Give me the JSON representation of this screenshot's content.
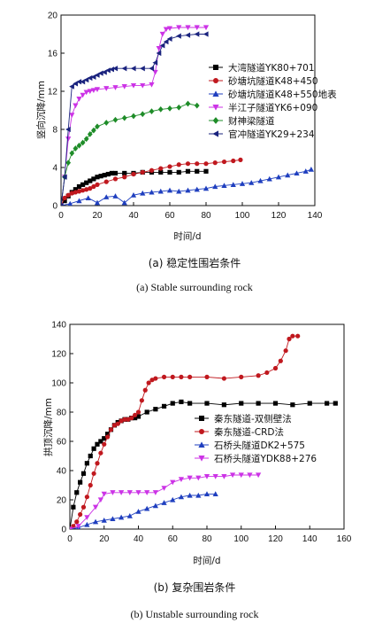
{
  "chart_data": [
    {
      "type": "line",
      "xlabel": "时间/d",
      "ylabel": "竖向沉降/mm",
      "xlim": [
        0,
        140
      ],
      "ylim": [
        0,
        20
      ],
      "xticks": [
        "0",
        "20",
        "40",
        "60",
        "80",
        "100",
        "120",
        "140"
      ],
      "yticks": [
        "0",
        "4",
        "8",
        "12",
        "16",
        "20"
      ],
      "caption": "(a) 稳定性围岩条件",
      "caption_en": "(a) Stable surrounding rock",
      "legend_position": "right",
      "series": [
        {
          "name": "大湾隧道YK80+701",
          "color": "#000000",
          "marker": "square",
          "x": [
            0,
            2,
            4,
            6,
            8,
            10,
            12,
            14,
            16,
            18,
            20,
            22,
            24,
            26,
            28,
            30,
            35,
            40,
            45,
            50,
            55,
            60,
            65,
            70,
            75,
            80
          ],
          "y": [
            0,
            0.5,
            1.0,
            1.4,
            1.7,
            2.0,
            2.2,
            2.4,
            2.6,
            2.8,
            3.0,
            3.1,
            3.2,
            3.3,
            3.4,
            3.4,
            3.4,
            3.4,
            3.5,
            3.5,
            3.5,
            3.5,
            3.5,
            3.6,
            3.6,
            3.6
          ]
        },
        {
          "name": "砂塘坑隧道K48+450",
          "color": "#c0181e",
          "marker": "circle",
          "x": [
            0,
            2,
            4,
            6,
            8,
            10,
            12,
            14,
            16,
            18,
            20,
            25,
            30,
            35,
            40,
            45,
            50,
            55,
            60,
            65,
            70,
            75,
            80,
            85,
            90,
            95,
            99
          ],
          "y": [
            0,
            0.8,
            1.1,
            1.3,
            1.4,
            1.5,
            1.6,
            1.7,
            1.8,
            2.0,
            2.2,
            2.5,
            2.8,
            3.0,
            3.3,
            3.5,
            3.7,
            3.9,
            4.1,
            4.3,
            4.4,
            4.4,
            4.4,
            4.5,
            4.6,
            4.7,
            4.8
          ]
        },
        {
          "name": "砂塘坑隧道K48+550地表",
          "color": "#1f3fbf",
          "marker": "triangle-up",
          "x": [
            0,
            5,
            10,
            15,
            20,
            25,
            30,
            35,
            40,
            45,
            50,
            55,
            60,
            65,
            70,
            75,
            80,
            85,
            90,
            95,
            100,
            105,
            110,
            115,
            120,
            125,
            130,
            135,
            138
          ],
          "y": [
            0,
            0.2,
            0.5,
            0.8,
            0.3,
            0.9,
            1.0,
            0.3,
            1.1,
            1.3,
            1.4,
            1.5,
            1.6,
            1.5,
            1.6,
            1.7,
            1.8,
            2.0,
            2.1,
            2.2,
            2.3,
            2.4,
            2.6,
            2.8,
            3.0,
            3.2,
            3.4,
            3.6,
            3.8
          ]
        },
        {
          "name": "半江子隧道YK6+090",
          "color": "#cc33e6",
          "marker": "triangle-down",
          "x": [
            0,
            2,
            4,
            6,
            8,
            10,
            12,
            14,
            16,
            18,
            20,
            25,
            30,
            35,
            40,
            45,
            50,
            52,
            54,
            56,
            58,
            60,
            65,
            70,
            75,
            80
          ],
          "y": [
            0,
            3,
            7,
            9.5,
            10.5,
            11.2,
            11.6,
            11.9,
            12.0,
            12.1,
            12.2,
            12.3,
            12.4,
            12.5,
            12.6,
            12.6,
            12.7,
            14.0,
            16.5,
            18.0,
            18.5,
            18.6,
            18.7,
            18.7,
            18.7,
            18.7
          ]
        },
        {
          "name": "财神梁隧道",
          "color": "#1e8c28",
          "marker": "diamond",
          "x": [
            0,
            2,
            4,
            6,
            8,
            10,
            12,
            14,
            16,
            18,
            20,
            25,
            30,
            35,
            40,
            45,
            50,
            55,
            60,
            65,
            70,
            75
          ],
          "y": [
            0,
            3,
            4.5,
            5.5,
            6.0,
            6.3,
            6.6,
            7.0,
            7.5,
            7.9,
            8.3,
            8.7,
            9.0,
            9.2,
            9.4,
            9.6,
            9.9,
            10.1,
            10.2,
            10.3,
            10.7,
            10.5
          ]
        },
        {
          "name": "官冲隧道YK29+234",
          "color": "#1a237e",
          "marker": "triangle-left",
          "x": [
            0,
            2,
            4,
            6,
            8,
            10,
            12,
            14,
            16,
            18,
            20,
            22,
            24,
            26,
            28,
            30,
            35,
            40,
            45,
            50,
            52,
            54,
            56,
            58,
            60,
            65,
            70,
            75,
            80
          ],
          "y": [
            0,
            3,
            8,
            12.5,
            12.8,
            13.0,
            13.0,
            13.2,
            13.4,
            13.5,
            13.7,
            13.9,
            14.0,
            14.2,
            14.3,
            14.4,
            14.4,
            14.4,
            14.4,
            14.4,
            15.0,
            16.0,
            16.8,
            17.2,
            17.5,
            17.8,
            17.9,
            18.0,
            18.0
          ]
        }
      ]
    },
    {
      "type": "line",
      "xlabel": "时间/d",
      "ylabel": "拱顶沉降/mm",
      "xlim": [
        0,
        160
      ],
      "ylim": [
        0,
        140
      ],
      "xticks": [
        "0",
        "20",
        "40",
        "60",
        "80",
        "100",
        "120",
        "140",
        "160"
      ],
      "yticks": [
        "0",
        "20",
        "40",
        "60",
        "80",
        "100",
        "120",
        "140"
      ],
      "caption": "(b) 复杂围岩条件",
      "caption_en": "(b) Unstable surrounding rock",
      "legend_position": "right",
      "series": [
        {
          "name": "秦东隧道-双侧壁法",
          "color": "#000000",
          "marker": "square",
          "x": [
            0,
            2,
            4,
            6,
            8,
            10,
            12,
            14,
            16,
            18,
            20,
            22,
            24,
            26,
            28,
            30,
            32,
            34,
            36,
            38,
            40,
            45,
            50,
            55,
            60,
            65,
            70,
            80,
            90,
            100,
            110,
            120,
            130,
            140,
            150,
            155
          ],
          "y": [
            0,
            15,
            25,
            32,
            38,
            45,
            50,
            55,
            58,
            60,
            62,
            65,
            68,
            71,
            73,
            74,
            75,
            75,
            76,
            76,
            77,
            80,
            82,
            84,
            86,
            87,
            86,
            86,
            85,
            86,
            86,
            86,
            85,
            86,
            86,
            86
          ]
        },
        {
          "name": "秦东隧道-CRD法",
          "color": "#c0181e",
          "marker": "circle",
          "x": [
            0,
            2,
            4,
            6,
            8,
            10,
            12,
            14,
            16,
            18,
            20,
            22,
            24,
            26,
            28,
            30,
            32,
            34,
            36,
            38,
            40,
            42,
            44,
            46,
            48,
            50,
            55,
            60,
            65,
            70,
            80,
            90,
            100,
            110,
            115,
            120,
            123,
            126,
            128,
            130,
            133
          ],
          "y": [
            0,
            2,
            5,
            10,
            15,
            22,
            30,
            38,
            45,
            52,
            58,
            63,
            68,
            71,
            72,
            74,
            75,
            75,
            76,
            78,
            80,
            88,
            95,
            100,
            102,
            103,
            104,
            104,
            104,
            104,
            104,
            103,
            104,
            105,
            107,
            110,
            115,
            122,
            130,
            132,
            132
          ]
        },
        {
          "name": "石桥头隧道DK2+575",
          "color": "#1f3fbf",
          "marker": "triangle-up",
          "x": [
            0,
            5,
            10,
            15,
            20,
            25,
            30,
            35,
            40,
            45,
            50,
            55,
            60,
            65,
            70,
            75,
            80,
            85
          ],
          "y": [
            0,
            1,
            3,
            5,
            6,
            7,
            8,
            9,
            12,
            14,
            16,
            18,
            20,
            22,
            23,
            23,
            24,
            24
          ]
        },
        {
          "name": "石桥头隧道YDK88+276",
          "color": "#cc33e6",
          "marker": "triangle-down",
          "x": [
            0,
            5,
            10,
            15,
            18,
            20,
            25,
            30,
            35,
            40,
            45,
            50,
            55,
            60,
            65,
            70,
            75,
            80,
            85,
            90,
            95,
            100,
            105,
            110
          ],
          "y": [
            0,
            2,
            8,
            15,
            20,
            24,
            25,
            25,
            25,
            25,
            25,
            25,
            28,
            32,
            34,
            35,
            35,
            36,
            36,
            36,
            37,
            37,
            37,
            37
          ]
        }
      ]
    }
  ]
}
